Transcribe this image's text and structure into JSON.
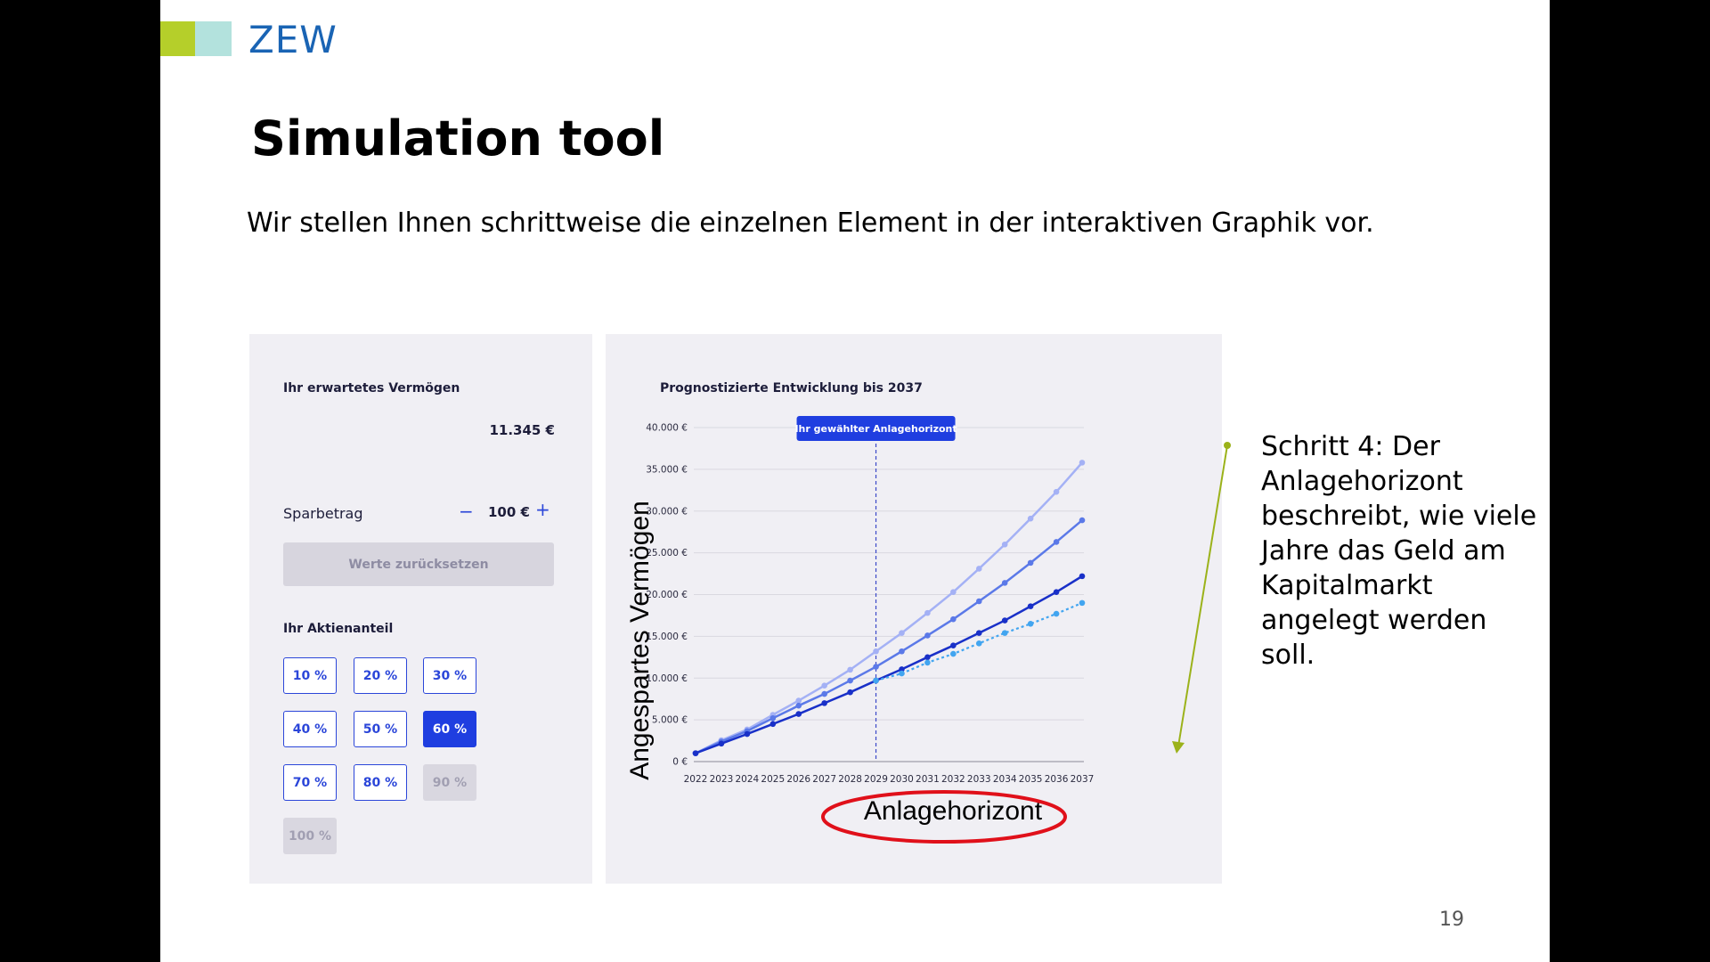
{
  "header": {
    "logo_text": "ZEW",
    "title": "Simulation tool",
    "subtitle": "Wir stellen Ihnen schrittweise die einzelnen Element in der interaktiven Graphik vor."
  },
  "left_panel": {
    "wealth_label": "Ihr erwartetes Vermögen",
    "wealth_value": "11.345 €",
    "savings_label": "Sparbetrag",
    "savings_minus": "−",
    "savings_value": "100 €",
    "savings_plus": "+",
    "reset_label": "Werte zurücksetzen",
    "equity_label": "Ihr Aktienanteil",
    "equity_options": [
      {
        "label": "10 %",
        "state": "default"
      },
      {
        "label": "20 %",
        "state": "default"
      },
      {
        "label": "30 %",
        "state": "default"
      },
      {
        "label": "40 %",
        "state": "default"
      },
      {
        "label": "50 %",
        "state": "default"
      },
      {
        "label": "60 %",
        "state": "selected"
      },
      {
        "label": "70 %",
        "state": "default"
      },
      {
        "label": "80 %",
        "state": "default"
      },
      {
        "label": "90 %",
        "state": "disabled"
      },
      {
        "label": "100 %",
        "state": "disabled"
      }
    ]
  },
  "chart_panel": {
    "title": "Prognostizierte Entwicklung bis 2037",
    "y_axis_label": "Angespartes Vermögen",
    "x_axis_label": "Anlagehorizont",
    "horizon_tooltip": "Ihr gewählter Anlagehorizont"
  },
  "chart_data": {
    "type": "line",
    "x": [
      2022,
      2023,
      2024,
      2025,
      2026,
      2027,
      2028,
      2029,
      2030,
      2031,
      2032,
      2033,
      2034,
      2035,
      2036,
      2037
    ],
    "y_ticks": [
      "0 €",
      "5.000 €",
      "10.000 €",
      "15.000 €",
      "20.000 €",
      "25.000 €",
      "30.000 €",
      "35.000 €",
      "40.000 €"
    ],
    "ylim": [
      0,
      40000
    ],
    "grid": true,
    "horizon_year": 2029,
    "series": [
      {
        "style": "solid",
        "color": "#a4b1f5",
        "values": [
          1000,
          2550,
          3850,
          5600,
          7300,
          9100,
          11000,
          13200,
          15400,
          17800,
          20300,
          23100,
          26000,
          29100,
          32300,
          35800
        ]
      },
      {
        "style": "solid",
        "color": "#5b79e8",
        "values": [
          1000,
          2400,
          3650,
          5200,
          6700,
          8100,
          9700,
          11350,
          13200,
          15100,
          17050,
          19200,
          21400,
          23800,
          26300,
          28900
        ]
      },
      {
        "style": "solid",
        "color": "#1930c8",
        "values": [
          1000,
          2150,
          3300,
          4500,
          5700,
          7000,
          8300,
          9700,
          11050,
          12500,
          13900,
          15400,
          16900,
          18600,
          20300,
          22200
        ]
      },
      {
        "style": "dotted",
        "color": "#42a5f0",
        "values": [
          null,
          null,
          null,
          null,
          null,
          null,
          null,
          9700,
          10550,
          11850,
          12900,
          14150,
          15400,
          16500,
          17700,
          19000
        ]
      }
    ]
  },
  "annotation": {
    "text": "Schritt 4: Der Anlagehorizont beschreibt, wie viele Jahre das Geld am Kapitalmarkt angelegt werden soll."
  },
  "page_number": "19",
  "colors": {
    "accent_blue": "#1f3ee0",
    "annotation_arrow": "#9bb21a",
    "highlight_ellipse": "#e0101a",
    "zew_blue": "#1a64b4",
    "zew_green": "#b5cf2a",
    "zew_teal": "#b3e2dd"
  }
}
